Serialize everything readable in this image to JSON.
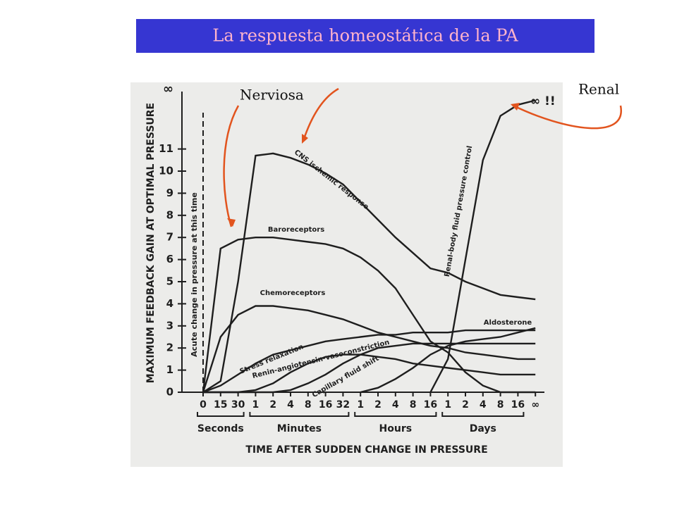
{
  "chart_data": {
    "type": "line",
    "title": "La respuesta homeostática de la PA",
    "xlabel": "TIME AFTER SUDDEN CHANGE IN PRESSURE",
    "ylabel": "MAXIMUM FEEDBACK GAIN AT OPTIMAL PRESSURE",
    "categories": [
      "0",
      "15",
      "30",
      "1",
      "2",
      "4",
      "8",
      "16",
      "32",
      "1",
      "2",
      "4",
      "8",
      "16",
      "1",
      "2",
      "4",
      "8",
      "16",
      "∞"
    ],
    "category_groups": [
      "Seconds",
      "Minutes",
      "Hours",
      "Days"
    ],
    "ylim": [
      0,
      13.5
    ],
    "yticks": [
      0,
      1,
      2,
      3,
      4,
      5,
      6,
      7,
      8,
      9,
      10,
      11
    ],
    "y_top_label": "∞",
    "color": "#1e1e1e",
    "series": [
      {
        "name": "CNS ischemic response",
        "values": [
          0,
          0.5,
          5,
          10.7,
          10.8,
          10.6,
          10.3,
          9.9,
          9.4,
          8.6,
          7.8,
          7.0,
          6.3,
          5.6,
          5.4,
          5.0,
          4.7,
          4.4,
          4.3,
          4.2
        ]
      },
      {
        "name": "Baroreceptors",
        "values": [
          0,
          6.5,
          6.9,
          7.0,
          7.0,
          6.9,
          6.8,
          6.7,
          6.5,
          6.1,
          5.5,
          4.7,
          3.5,
          2.3,
          1.8,
          0.9,
          0.3,
          0,
          0,
          0
        ]
      },
      {
        "name": "Chemoreceptors",
        "values": [
          0,
          2.5,
          3.5,
          3.9,
          3.9,
          3.8,
          3.7,
          3.5,
          3.3,
          3.0,
          2.7,
          2.5,
          2.3,
          2.1,
          2.0,
          1.8,
          1.7,
          1.6,
          1.5,
          1.5
        ]
      },
      {
        "name": "Stress relaxation",
        "values": [
          0,
          0.3,
          0.8,
          1.3,
          1.7,
          1.9,
          2.1,
          2.3,
          2.4,
          2.5,
          2.6,
          2.6,
          2.7,
          2.7,
          2.7,
          2.8,
          2.8,
          2.8,
          2.8,
          2.8
        ]
      },
      {
        "name": "Renin-angiotensin-vasoconstriction",
        "values": [
          0,
          0,
          0,
          0.1,
          0.4,
          0.9,
          1.3,
          1.6,
          1.7,
          1.7,
          1.6,
          1.5,
          1.3,
          1.2,
          1.1,
          1.0,
          0.9,
          0.8,
          0.8,
          0.8
        ]
      },
      {
        "name": "Capillary fluid shift",
        "values": [
          0,
          0,
          0,
          0,
          0,
          0.1,
          0.4,
          0.8,
          1.3,
          1.7,
          2.0,
          2.1,
          2.2,
          2.2,
          2.2,
          2.2,
          2.2,
          2.2,
          2.2,
          2.2
        ]
      },
      {
        "name": "Aldosterone",
        "values": [
          null,
          null,
          null,
          null,
          null,
          null,
          null,
          null,
          null,
          0,
          0.2,
          0.6,
          1.1,
          1.7,
          2.1,
          2.3,
          2.4,
          2.5,
          2.7,
          2.9
        ]
      },
      {
        "name": "Renal-body fluid pressure control",
        "values": [
          null,
          null,
          null,
          null,
          null,
          null,
          null,
          null,
          null,
          null,
          null,
          null,
          null,
          0,
          1.5,
          6,
          10.5,
          12.5,
          13.0,
          13.2
        ]
      }
    ],
    "annotations": [
      "Nerviosa",
      "Renal",
      "Acute change in pressure at this time",
      "∞ !!"
    ]
  }
}
